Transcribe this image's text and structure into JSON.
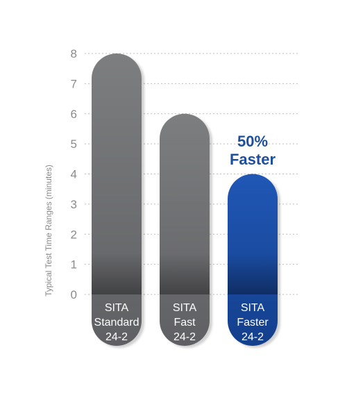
{
  "chart_data": {
    "type": "bar",
    "ylabel": "Typical Test Time Ranges (minutes)",
    "ylim": [
      0,
      8
    ],
    "yticks": [
      "0",
      "1",
      "2",
      "3",
      "4",
      "5",
      "6",
      "7",
      "8"
    ],
    "grid": true,
    "categories": [
      {
        "lines": [
          "SITA",
          "Standard",
          "24-2"
        ],
        "value": 8,
        "color": "#7d7e80"
      },
      {
        "lines": [
          "SITA",
          "Fast",
          "24-2"
        ],
        "value": 6,
        "color": "#7d7e80"
      },
      {
        "lines": [
          "SITA",
          "Faster",
          "24-2"
        ],
        "value": 4,
        "color": "#1d4fa3"
      }
    ],
    "annotation": {
      "lines": [
        "50%",
        "Faster"
      ],
      "color": "#1d4f9c"
    }
  }
}
